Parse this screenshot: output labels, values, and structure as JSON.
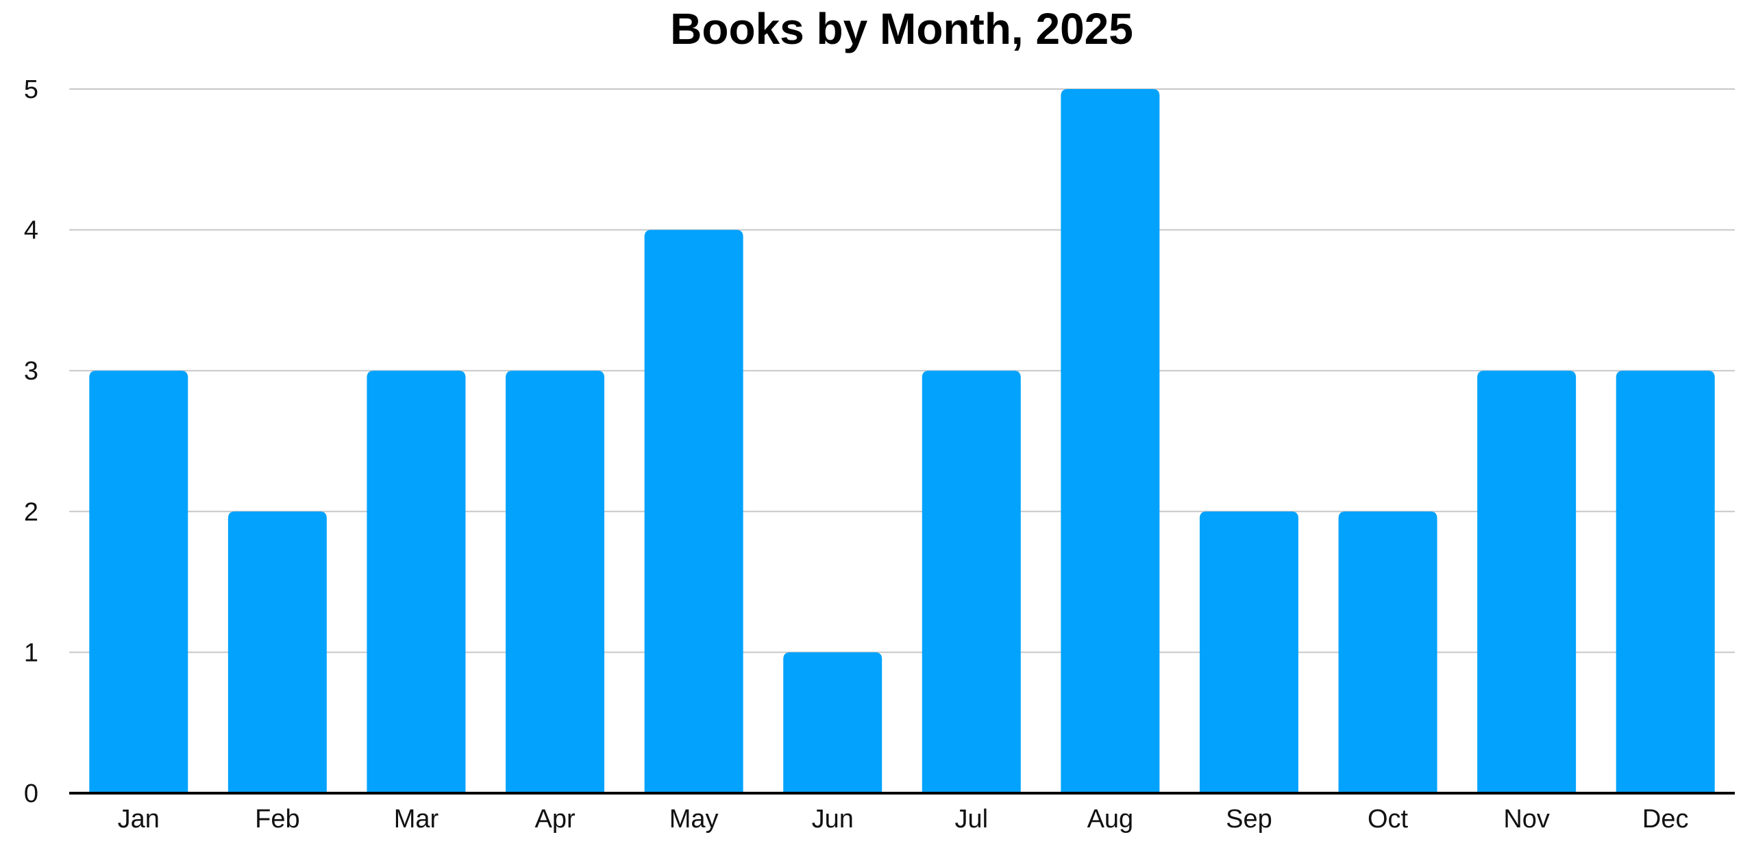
{
  "chart_data": {
    "type": "bar",
    "title": "Books by Month, 2025",
    "xlabel": "",
    "ylabel": "",
    "categories": [
      "Jan",
      "Feb",
      "Mar",
      "Apr",
      "May",
      "Jun",
      "Jul",
      "Aug",
      "Sep",
      "Oct",
      "Nov",
      "Dec"
    ],
    "values": [
      3,
      2,
      3,
      3,
      4,
      1,
      3,
      5,
      2,
      2,
      3,
      3
    ],
    "ylim": [
      0,
      5
    ],
    "yticks": [
      0,
      1,
      2,
      3,
      4,
      5
    ],
    "grid": true,
    "legend": "none",
    "bar_color": "#03A2FD",
    "grid_color": "#C8C8C8",
    "axis_color": "#000000"
  }
}
